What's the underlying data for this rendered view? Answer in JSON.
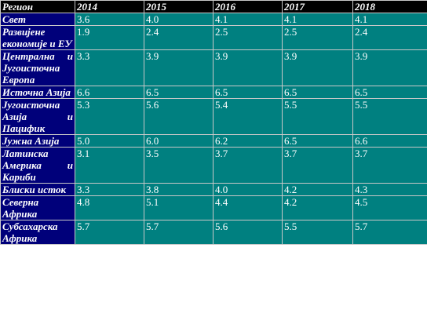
{
  "table": {
    "headers": [
      "Регион",
      "2014",
      "2015",
      "2016",
      "2017",
      "2018"
    ],
    "rows": [
      {
        "region": "Свет",
        "values": [
          "3.6",
          "4.0",
          "4.1",
          "4.1",
          "4.1"
        ]
      },
      {
        "region": "Развијене економије и ЕУ",
        "values": [
          "1.9",
          "2.4",
          "2.5",
          "2.5",
          "2.4"
        ]
      },
      {
        "region": "Централна и Југоисточна Европа",
        "values": [
          "3.3",
          "3.9",
          "3.9",
          "3.9",
          "3.9"
        ]
      },
      {
        "region": "Источна Азија",
        "values": [
          "6.6",
          "6.5",
          "6.5",
          "6.5",
          "6.5"
        ]
      },
      {
        "region": "Југоисточна Азија и Пацифик",
        "values": [
          "5.3",
          "5.6",
          "5.4",
          "5.5",
          "5.5"
        ]
      },
      {
        "region": "Јужна Азија",
        "values": [
          "5.0",
          "6.0",
          "6.2",
          "6.5",
          "6.6"
        ]
      },
      {
        "region": "Латинска Америка и Кариби",
        "values": [
          "3.1",
          "3.5",
          "3.7",
          "3.7",
          "3.7"
        ]
      },
      {
        "region": "Блиски исток",
        "values": [
          "3.3",
          "3.8",
          "4.0",
          "4.2",
          "4.3"
        ]
      },
      {
        "region": "Северна Африка",
        "values": [
          "4.8",
          "5.1",
          "4.4",
          "4.2",
          "4.5"
        ]
      },
      {
        "region": "Субсахарска Африка",
        "values": [
          "5.7",
          "5.7",
          "5.6",
          "5.5",
          "5.7"
        ]
      }
    ]
  },
  "colors": {
    "header_bg": "#000000",
    "region_bg": "#00007a",
    "value_bg": "#008080",
    "text": "#ffffff"
  }
}
